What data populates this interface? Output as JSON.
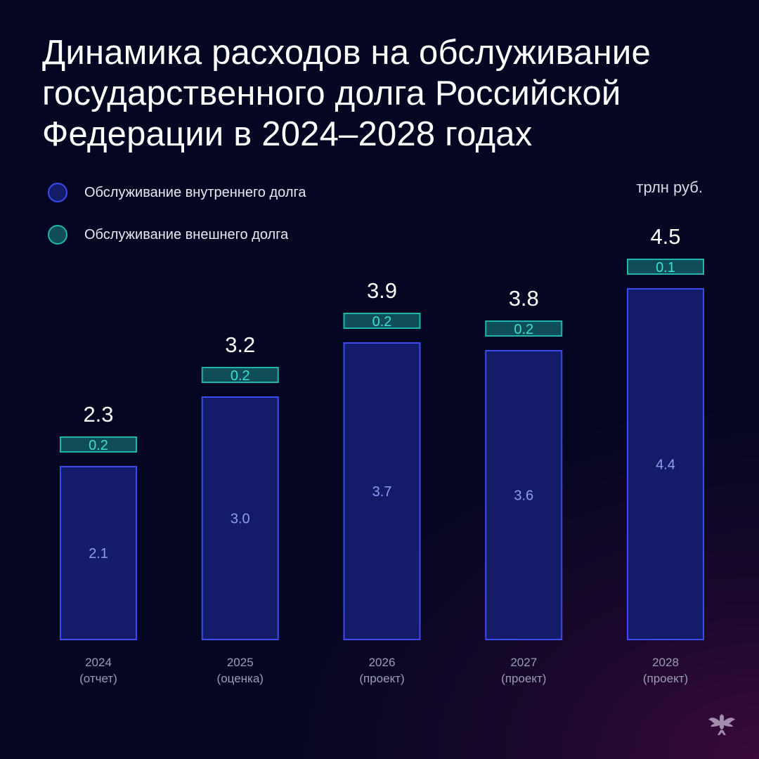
{
  "title": "Динамика расходов на обслуживание государственного долга Российской Федерации в 2024–2028 годах",
  "unit": "трлн руб.",
  "colors": {
    "domestic_fill": "#141c6a",
    "domestic_stroke": "#3a4cf0",
    "domestic_text": "#8f9cf0",
    "external_fill": "#0f4e58",
    "external_stroke": "#1fb5a8",
    "external_text": "#3ee0cf",
    "background": "#050722"
  },
  "chart_data": {
    "type": "bar",
    "stacked": true,
    "categories": [
      "2024",
      "2025",
      "2026",
      "2027",
      "2028"
    ],
    "category_sublabels": [
      "(отчет)",
      "(оценка)",
      "(проект)",
      "(проект)",
      "(проект)"
    ],
    "series": [
      {
        "name": "Обслуживание внутреннего долга",
        "values": [
          2.1,
          3.0,
          3.7,
          3.6,
          4.4
        ],
        "labels": [
          "2.1",
          "3.0",
          "3.7",
          "3.6",
          "4.4"
        ]
      },
      {
        "name": "Обслуживание внешнего долга",
        "values": [
          0.2,
          0.2,
          0.2,
          0.2,
          0.1
        ],
        "labels": [
          "0.2",
          "0.2",
          "0.2",
          "0.2",
          "0.1"
        ]
      }
    ],
    "totals": [
      "2.3",
      "3.2",
      "3.9",
      "3.8",
      "4.5"
    ],
    "ylabel": "трлн руб.",
    "grid": false,
    "legend": "top-left"
  }
}
